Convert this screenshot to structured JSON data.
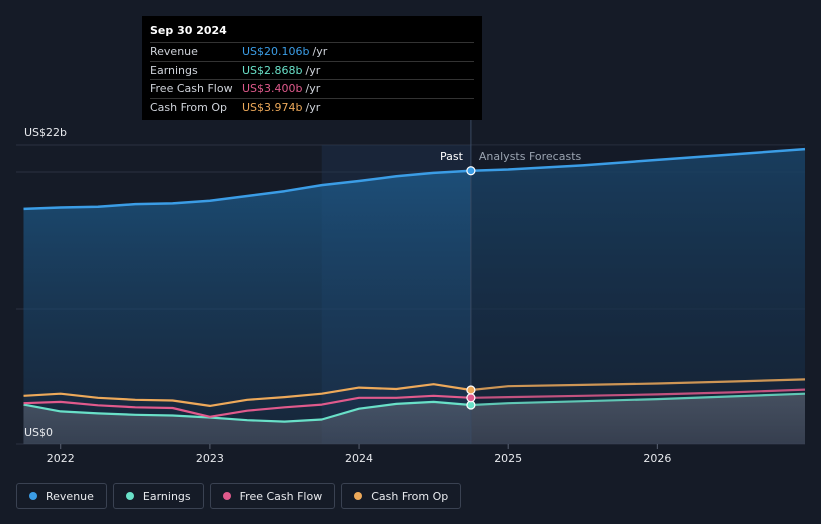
{
  "tooltip": {
    "date": "Sep 30 2024",
    "rows": [
      {
        "label": "Revenue",
        "value": "US$20.106b",
        "unit": "/yr",
        "color": "#3b9de6"
      },
      {
        "label": "Earnings",
        "value": "US$2.868b",
        "unit": "/yr",
        "color": "#69e0c8"
      },
      {
        "label": "Free Cash Flow",
        "value": "US$3.400b",
        "unit": "/yr",
        "color": "#e05a8c"
      },
      {
        "label": "Cash From Op",
        "value": "US$3.974b",
        "unit": "/yr",
        "color": "#eda95a"
      }
    ]
  },
  "chart_data": {
    "type": "line",
    "y_top_label": "US$22b",
    "y_bottom_label": "US$0",
    "ylim": [
      0,
      22
    ],
    "xlim": [
      2021.7,
      2026.99
    ],
    "x_ticks": [
      {
        "value": 2022,
        "label": "2022"
      },
      {
        "value": 2023,
        "label": "2023"
      },
      {
        "value": 2024,
        "label": "2024"
      },
      {
        "value": 2025,
        "label": "2025"
      },
      {
        "value": 2026,
        "label": "2026"
      }
    ],
    "divider_x": 2024.75,
    "past_label": "Past",
    "forecast_label": "Analysts Forecasts",
    "series": [
      {
        "name": "Revenue",
        "color": "#3b9de6",
        "fill": true,
        "x": [
          2021.75,
          2022.0,
          2022.25,
          2022.5,
          2022.75,
          2023.0,
          2023.25,
          2023.5,
          2023.75,
          2024.0,
          2024.25,
          2024.5,
          2024.75,
          2025.0,
          2025.5,
          2026.0,
          2026.5,
          2026.99
        ],
        "y": [
          17.3,
          17.4,
          17.45,
          17.65,
          17.7,
          17.9,
          18.25,
          18.6,
          19.05,
          19.35,
          19.7,
          19.95,
          20.106,
          20.2,
          20.5,
          20.9,
          21.3,
          21.7
        ]
      },
      {
        "name": "Earnings",
        "color": "#69e0c8",
        "fill": false,
        "x": [
          2021.75,
          2022.0,
          2022.25,
          2022.5,
          2022.75,
          2023.0,
          2023.25,
          2023.5,
          2023.75,
          2024.0,
          2024.25,
          2024.5,
          2024.75,
          2025.0,
          2025.5,
          2026.0,
          2026.5,
          2026.99
        ],
        "y": [
          2.9,
          2.4,
          2.25,
          2.15,
          2.1,
          1.95,
          1.75,
          1.65,
          1.8,
          2.6,
          2.95,
          3.1,
          2.868,
          3.0,
          3.15,
          3.3,
          3.5,
          3.7
        ]
      },
      {
        "name": "Free Cash Flow",
        "color": "#e05a8c",
        "fill": false,
        "x": [
          2021.75,
          2022.0,
          2022.25,
          2022.5,
          2022.75,
          2023.0,
          2023.25,
          2023.5,
          2023.75,
          2024.0,
          2024.25,
          2024.5,
          2024.75,
          2025.0,
          2025.5,
          2026.0,
          2026.5,
          2026.99
        ],
        "y": [
          3.0,
          3.1,
          2.85,
          2.7,
          2.65,
          2.0,
          2.45,
          2.7,
          2.9,
          3.4,
          3.4,
          3.55,
          3.4,
          3.45,
          3.55,
          3.65,
          3.8,
          4.0
        ]
      },
      {
        "name": "Cash From Op",
        "color": "#eda95a",
        "fill": false,
        "x": [
          2021.75,
          2022.0,
          2022.25,
          2022.5,
          2022.75,
          2023.0,
          2023.25,
          2023.5,
          2023.75,
          2024.0,
          2024.25,
          2024.5,
          2024.75,
          2025.0,
          2025.5,
          2026.0,
          2026.5,
          2026.99
        ],
        "y": [
          3.55,
          3.7,
          3.4,
          3.25,
          3.2,
          2.8,
          3.25,
          3.45,
          3.7,
          4.15,
          4.05,
          4.4,
          3.974,
          4.25,
          4.35,
          4.45,
          4.6,
          4.75
        ]
      }
    ]
  },
  "legend": [
    {
      "label": "Revenue",
      "color": "#3b9de6"
    },
    {
      "label": "Earnings",
      "color": "#69e0c8"
    },
    {
      "label": "Free Cash Flow",
      "color": "#e05a8c"
    },
    {
      "label": "Cash From Op",
      "color": "#eda95a"
    }
  ]
}
